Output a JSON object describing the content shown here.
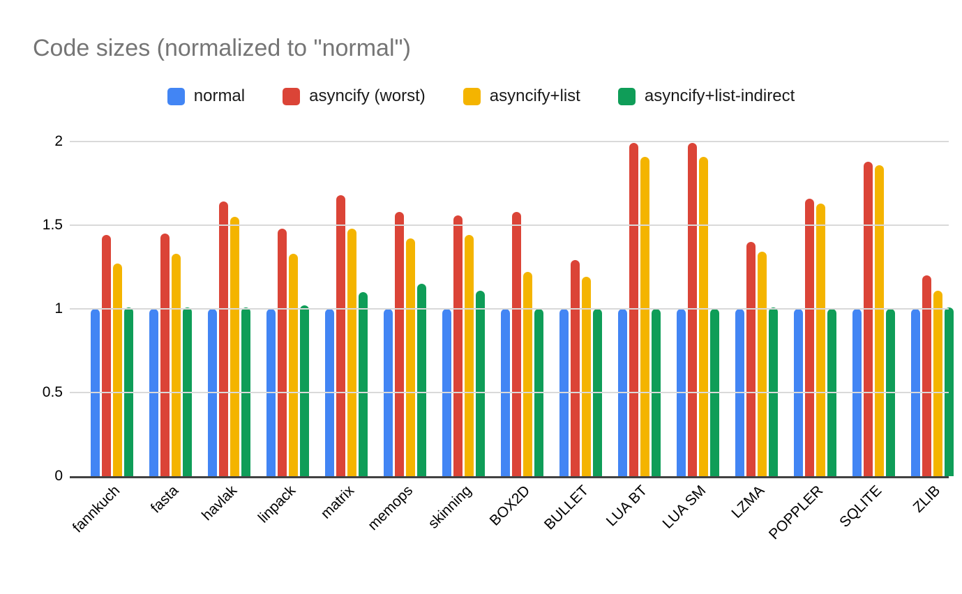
{
  "chart_data": {
    "type": "bar",
    "title": "Code sizes (normalized to \"normal\")",
    "xlabel": "",
    "ylabel": "",
    "ylim": [
      0,
      2
    ],
    "yticks": [
      0,
      0.5,
      1,
      1.5,
      2
    ],
    "grid": true,
    "legend_position": "top",
    "title_color": "#757575",
    "axis_color": "#424242",
    "gridline_color": "#d9d9d9",
    "categories": [
      "fannkuch",
      "fasta",
      "havlak",
      "linpack",
      "matrix",
      "memops",
      "skinning",
      "BOX2D",
      "BULLET",
      "LUA BT",
      "LUA SM",
      "LZMA",
      "POPPLER",
      "SQLITE",
      "ZLIB"
    ],
    "series": [
      {
        "name": "normal",
        "color": "#4285F4",
        "values": [
          1.0,
          1.0,
          1.0,
          1.0,
          1.0,
          1.0,
          1.0,
          1.0,
          1.0,
          1.0,
          1.0,
          1.0,
          1.0,
          1.0,
          1.0
        ]
      },
      {
        "name": "asyncify (worst)",
        "color": "#DB4437",
        "values": [
          1.44,
          1.45,
          1.64,
          1.48,
          1.68,
          1.58,
          1.56,
          1.58,
          1.29,
          1.99,
          1.99,
          1.4,
          1.66,
          1.88,
          1.2
        ]
      },
      {
        "name": "asyncify+list",
        "color": "#F4B400",
        "values": [
          1.27,
          1.33,
          1.55,
          1.33,
          1.48,
          1.42,
          1.44,
          1.22,
          1.19,
          1.91,
          1.91,
          1.34,
          1.63,
          1.86,
          1.11
        ]
      },
      {
        "name": "asyncify+list-indirect",
        "color": "#0F9D58",
        "values": [
          1.01,
          1.01,
          1.01,
          1.02,
          1.1,
          1.15,
          1.11,
          1.0,
          1.0,
          1.0,
          1.0,
          1.01,
          1.0,
          1.0,
          1.01
        ]
      }
    ]
  }
}
